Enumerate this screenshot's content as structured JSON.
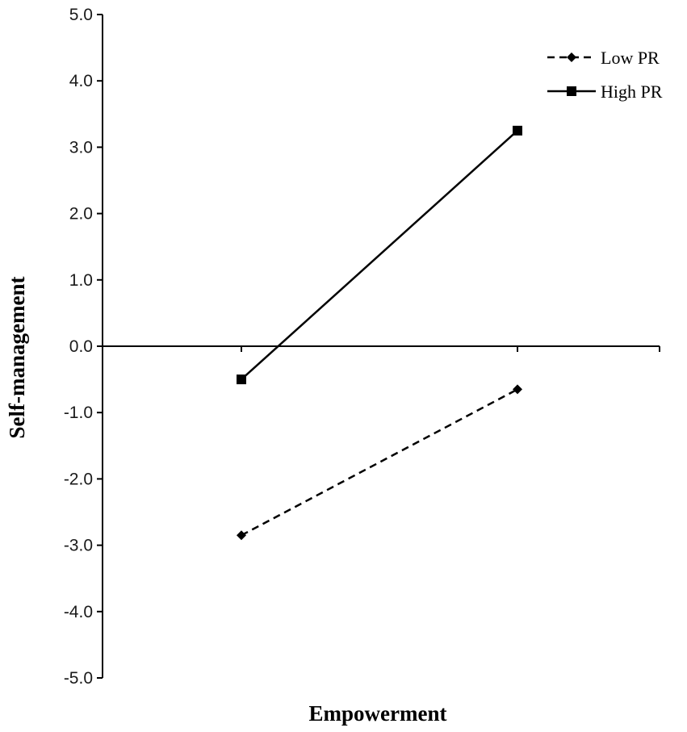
{
  "chart_data": {
    "type": "line",
    "xlabel": "Empowerment",
    "ylabel": "Self-management",
    "ylim": [
      -5.0,
      5.0
    ],
    "yticks": [
      "-5.0",
      "-4.0",
      "-3.0",
      "-2.0",
      "-1.0",
      "0.0",
      "1.0",
      "2.0",
      "3.0",
      "4.0",
      "5.0"
    ],
    "legend_position": "top-right",
    "grid": false,
    "series": [
      {
        "name": "Low PR",
        "line_style": "dashed",
        "marker": "diamond",
        "color": "#000000",
        "values": [
          -2.85,
          -0.65
        ]
      },
      {
        "name": "High PR",
        "line_style": "solid",
        "marker": "square",
        "color": "#000000",
        "values": [
          -0.5,
          3.25
        ]
      }
    ]
  }
}
